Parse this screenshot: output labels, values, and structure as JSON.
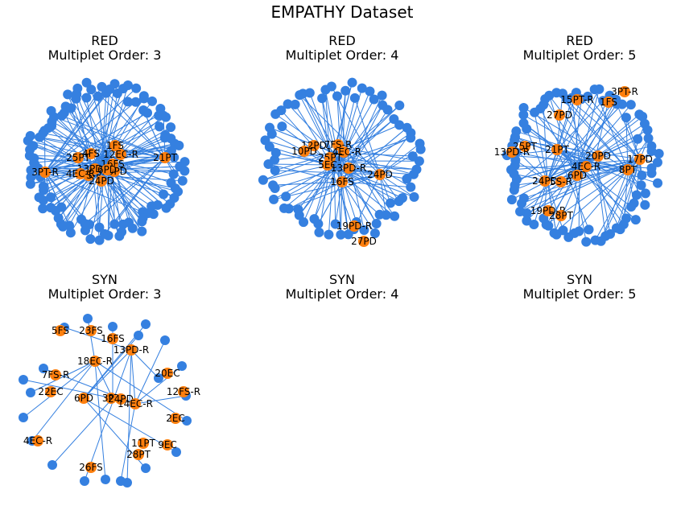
{
  "title": "EMPATHY Dataset",
  "colors": {
    "edge": "#3580e0",
    "leaf": "#3580e0",
    "hub": "#ff7f0e",
    "label": "#000000"
  },
  "panels": [
    {
      "id": "red-3",
      "title_line1": "RED",
      "title_line2": "Multiplet Order: 3",
      "leaf_count": 110,
      "leaf_seed": 3,
      "labels": [
        "1FS",
        "4FS",
        "12EC-R",
        "25PT",
        "16FS",
        "10PD",
        "21PT",
        "3PT-R",
        "7FS-R",
        "24PD",
        "13PD-R",
        "4EC-R",
        "6PD"
      ]
    },
    {
      "id": "red-4",
      "title_line1": "RED",
      "title_line2": "Multiplet Order: 4",
      "leaf_count": 72,
      "leaf_seed": 4,
      "labels": [
        "7FS-R",
        "12PD",
        "10PD",
        "14EC-R",
        "25PT",
        "5EC",
        "16FS",
        "24PD",
        "19PD-R",
        "27PD",
        "13PD-R"
      ]
    },
    {
      "id": "red-5",
      "title_line1": "RED",
      "title_line2": "Multiplet Order: 5",
      "leaf_count": 85,
      "leaf_seed": 5,
      "labels": [
        "3PT-R",
        "15PT-R",
        "1FS",
        "27PD",
        "25PT",
        "13PD-R",
        "21PT",
        "20PD",
        "17PD",
        "4EC-R",
        "8PT",
        "6PD",
        "24PD",
        "5S-R",
        "19PD-R",
        "28PT"
      ]
    },
    {
      "id": "syn-3",
      "title_line1": "SYN",
      "title_line2": "Multiplet Order: 3",
      "leaf_count": 22,
      "leaf_seed": 6,
      "labels": [
        "5FS",
        "23FS",
        "16FS",
        "13PD-R",
        "18EC-R",
        "7FS-R",
        "20EC",
        "22EC",
        "6PD",
        "3PT",
        "24PD",
        "14EC-R",
        "12FS-R",
        "2EC",
        "4EC-R",
        "11PT",
        "9EC",
        "28PT",
        "26FS"
      ]
    },
    {
      "id": "syn-4",
      "title_line1": "SYN",
      "title_line2": "Multiplet Order: 4",
      "leaf_count": 0,
      "leaf_seed": 7,
      "labels": []
    },
    {
      "id": "syn-5",
      "title_line1": "SYN",
      "title_line2": "Multiplet Order: 5",
      "leaf_count": 0,
      "leaf_seed": 8,
      "labels": []
    }
  ]
}
